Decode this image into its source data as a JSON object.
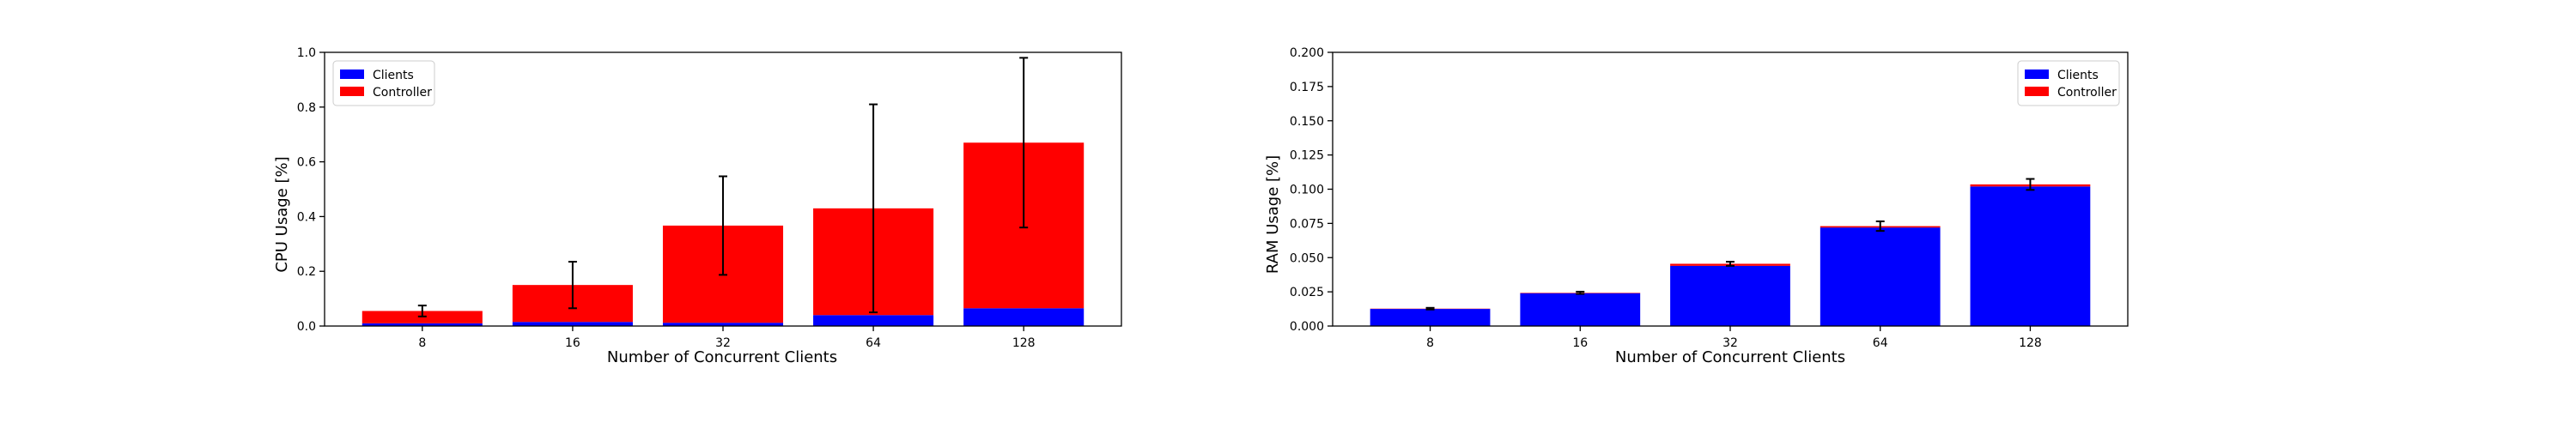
{
  "chart_data": [
    {
      "type": "bar",
      "stacked": true,
      "error_bars": true,
      "title": "",
      "xlabel": "Number of Concurrent Clients",
      "ylabel": "CPU Usage [%]",
      "ylim": [
        0,
        1.0
      ],
      "yticks": [
        "0.0",
        "0.2",
        "0.4",
        "0.6",
        "0.8",
        "1.0"
      ],
      "categories": [
        "8",
        "16",
        "32",
        "64",
        "128"
      ],
      "series": [
        {
          "name": "Clients",
          "color": "#0000ff",
          "values": [
            0.01,
            0.015,
            0.012,
            0.04,
            0.065
          ]
        },
        {
          "name": "Controller",
          "color": "#ff0000",
          "values": [
            0.045,
            0.135,
            0.355,
            0.39,
            0.605
          ]
        }
      ],
      "error": [
        0.02,
        0.085,
        0.18,
        0.38,
        0.31
      ],
      "legend": "top-left",
      "grid": false
    },
    {
      "type": "bar",
      "stacked": true,
      "error_bars": true,
      "title": "",
      "xlabel": "Number of Concurrent Clients",
      "ylabel": "RAM Usage [%]",
      "ylim": [
        0,
        0.2
      ],
      "yticks": [
        "0.000",
        "0.025",
        "0.050",
        "0.075",
        "0.100",
        "0.125",
        "0.150",
        "0.175",
        "0.200"
      ],
      "categories": [
        "8",
        "16",
        "32",
        "64",
        "128"
      ],
      "series": [
        {
          "name": "Clients",
          "color": "#0000ff",
          "values": [
            0.0125,
            0.024,
            0.044,
            0.072,
            0.102
          ]
        },
        {
          "name": "Controller",
          "color": "#ff0000",
          "values": [
            0.0002,
            0.0003,
            0.0015,
            0.001,
            0.0015
          ]
        }
      ],
      "error": [
        0.0006,
        0.0008,
        0.0015,
        0.0035,
        0.004
      ],
      "legend": "top-right",
      "grid": false
    }
  ]
}
